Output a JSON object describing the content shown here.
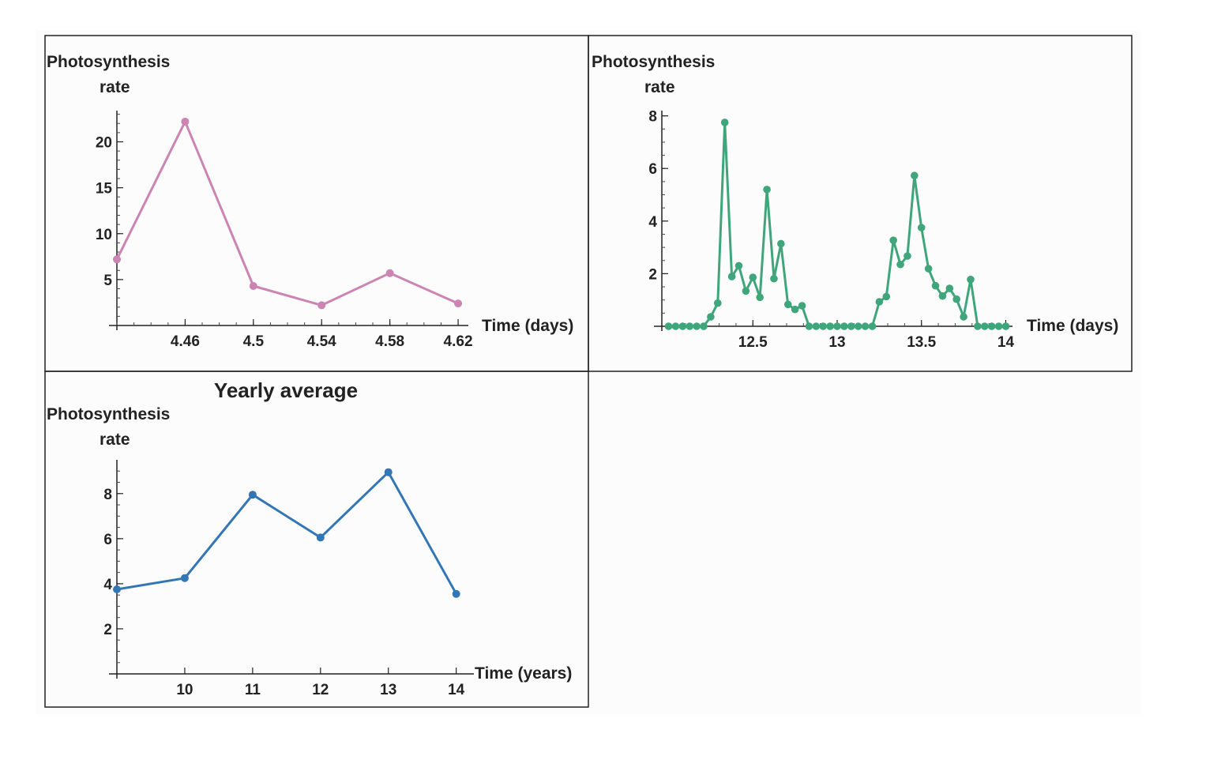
{
  "chart_data": [
    {
      "type": "line",
      "title": "",
      "ylabel_lines": [
        "Photosynthesis",
        "rate"
      ],
      "xlabel": "Time (days)",
      "color": "#cc85b2",
      "xlim": [
        4.42,
        4.626
      ],
      "ylim": [
        0,
        23.4
      ],
      "x_ticks": [
        {
          "value": 4.46,
          "label": "4.46"
        },
        {
          "value": 4.5,
          "label": "4.5"
        },
        {
          "value": 4.54,
          "label": "4.54"
        },
        {
          "value": 4.58,
          "label": "4.58"
        },
        {
          "value": 4.62,
          "label": "4.62"
        }
      ],
      "y_ticks": [
        {
          "value": 5,
          "label": "5"
        },
        {
          "value": 10,
          "label": "10"
        },
        {
          "value": 15,
          "label": "15"
        },
        {
          "value": 20,
          "label": "20"
        }
      ],
      "y_minor_step": 1,
      "x_minor_step": 0.01,
      "grid": false,
      "x": [
        4.42,
        4.46,
        4.5,
        4.54,
        4.58,
        4.62
      ],
      "y": [
        7.2,
        22.2,
        4.3,
        2.2,
        5.7,
        2.4
      ]
    },
    {
      "type": "line",
      "title": "",
      "ylabel_lines": [
        "Photosynthesis",
        "rate"
      ],
      "xlabel": "Time (days)",
      "color": "#3fa57a",
      "xlim": [
        11.96,
        14.04
      ],
      "ylim": [
        0,
        8.2
      ],
      "x_ticks": [
        {
          "value": 12.5,
          "label": "12.5"
        },
        {
          "value": 13,
          "label": "13"
        },
        {
          "value": 13.5,
          "label": "13.5"
        },
        {
          "value": 14,
          "label": "14"
        }
      ],
      "y_ticks": [
        {
          "value": 2,
          "label": "2"
        },
        {
          "value": 4,
          "label": "4"
        },
        {
          "value": 6,
          "label": "6"
        },
        {
          "value": 8,
          "label": "8"
        }
      ],
      "y_minor_step": 0.5,
      "x_minor_step": 0.1,
      "grid": false,
      "x_start": 12,
      "x_step": 0.041667,
      "y": [
        0,
        0,
        0,
        0,
        0,
        0,
        0.36,
        0.88,
        7.75,
        1.89,
        2.3,
        1.34,
        1.86,
        1.1,
        5.2,
        1.81,
        3.14,
        0.83,
        0.64,
        0.78,
        0,
        0,
        0,
        0,
        0,
        0,
        0,
        0,
        0,
        0,
        0.93,
        1.13,
        3.27,
        2.35,
        2.67,
        5.73,
        3.75,
        2.19,
        1.54,
        1.15,
        1.44,
        1.03,
        0.36,
        1.78,
        0,
        0,
        0,
        0,
        0
      ]
    },
    {
      "type": "line",
      "title": "Yearly average",
      "ylabel_lines": [
        "Photosynthesis",
        "rate"
      ],
      "xlabel": "Time (years)",
      "color": "#3376b6",
      "xlim": [
        9,
        14.26
      ],
      "ylim": [
        0,
        9.5
      ],
      "x_ticks": [
        {
          "value": 10,
          "label": "10"
        },
        {
          "value": 11,
          "label": "11"
        },
        {
          "value": 12,
          "label": "12"
        },
        {
          "value": 13,
          "label": "13"
        },
        {
          "value": 14,
          "label": "14"
        }
      ],
      "y_ticks": [
        {
          "value": 2,
          "label": "2"
        },
        {
          "value": 4,
          "label": "4"
        },
        {
          "value": 6,
          "label": "6"
        },
        {
          "value": 8,
          "label": "8"
        }
      ],
      "y_minor_step": 0.5,
      "x_minor_step": 0,
      "grid": false,
      "x": [
        9,
        10,
        11,
        12,
        13,
        14
      ],
      "y": [
        3.75,
        4.25,
        7.95,
        6.05,
        8.95,
        3.55
      ]
    }
  ]
}
